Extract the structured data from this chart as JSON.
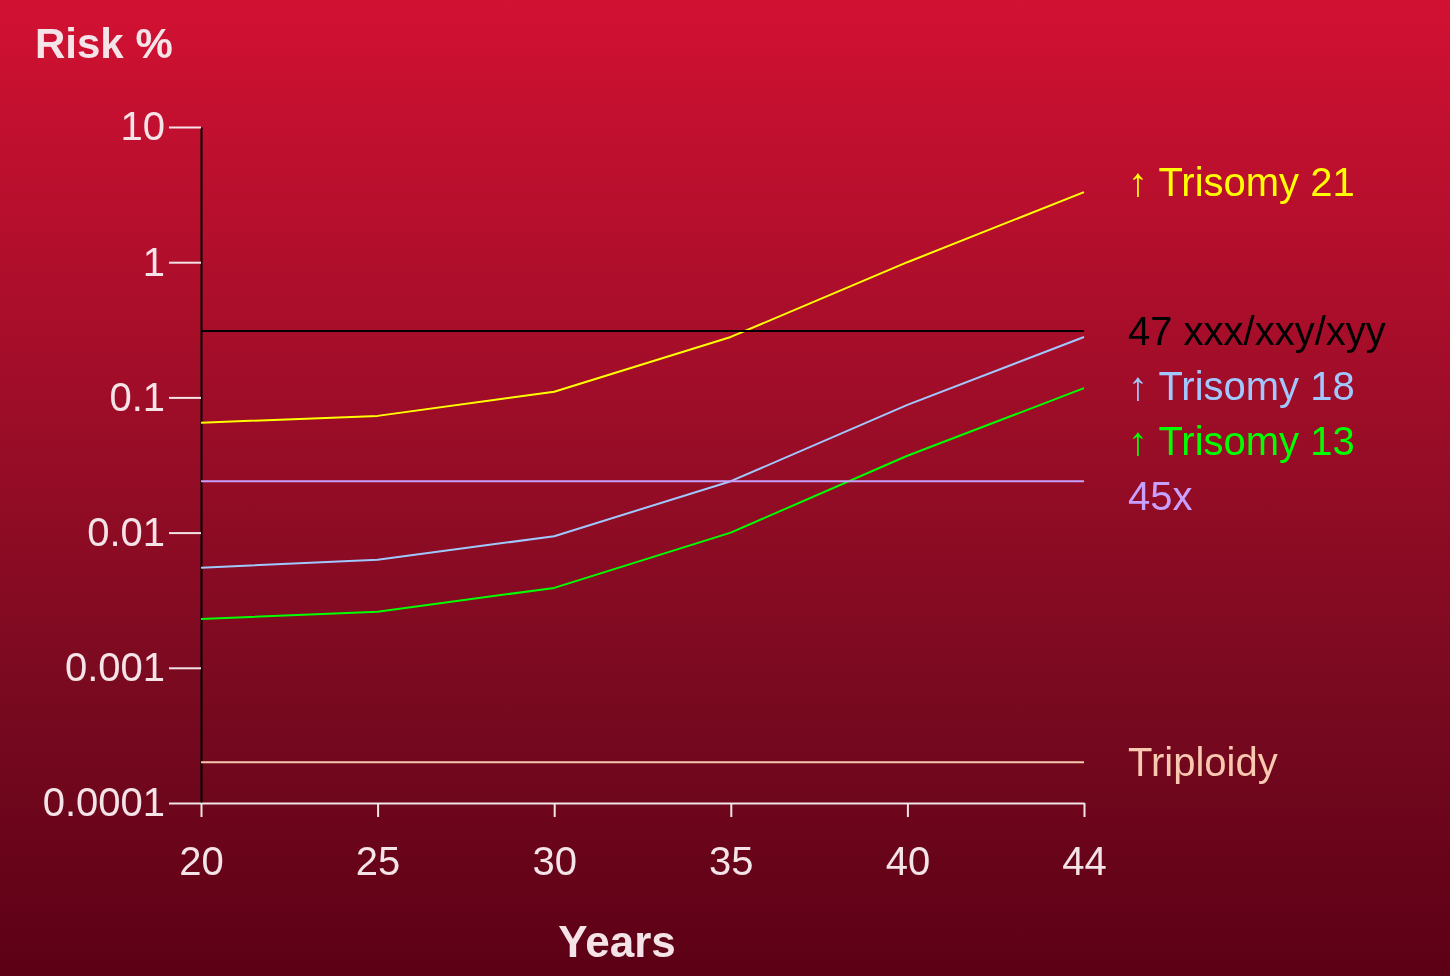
{
  "chart_data": {
    "type": "line",
    "title": "Risk %",
    "xlabel": "Years",
    "categories": [
      "20",
      "25",
      "30",
      "35",
      "40",
      "44"
    ],
    "log": "y",
    "ylim": [
      0.0001,
      10
    ],
    "yticks": [
      10,
      1,
      0.1,
      0.01,
      0.001,
      0.0001
    ],
    "grid": false,
    "legend": "right",
    "marker": "none",
    "line_style": "solid",
    "series": [
      {
        "name": "↑ Trisomy 21",
        "color": "#ffff00",
        "values": [
          0.065,
          0.073,
          0.11,
          0.28,
          1.0,
          3.3
        ]
      },
      {
        "name": "47 xxx/xxy/xyy",
        "color": "#000000",
        "values": [
          0.31,
          0.31,
          0.31,
          0.31,
          0.31,
          0.31
        ]
      },
      {
        "name": "↑ Trisomy 18",
        "color": "#a0c8ff",
        "values": [
          0.0055,
          0.0063,
          0.0094,
          0.024,
          0.088,
          0.28
        ]
      },
      {
        "name": "↑ Trisomy 13",
        "color": "#00ff00",
        "values": [
          0.0023,
          0.0026,
          0.0039,
          0.01,
          0.037,
          0.117
        ]
      },
      {
        "name": "45x",
        "color": "#c8a0ff",
        "values": [
          0.024,
          0.024,
          0.024,
          0.024,
          0.024,
          0.024
        ]
      },
      {
        "name": "Triploidy",
        "color": "#f8c8b0",
        "values": [
          0.0002,
          0.0002,
          0.0002,
          0.0002,
          0.0002,
          0.0002
        ]
      }
    ]
  }
}
